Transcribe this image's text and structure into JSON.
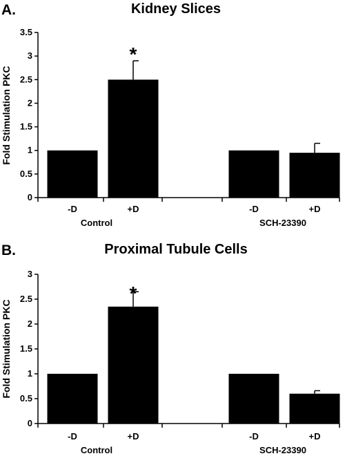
{
  "chart_data": [
    {
      "type": "bar",
      "panel_label": "A.",
      "title": "Kidney Slices",
      "ylabel": "Fold Stimulation PKC",
      "ylim": [
        0,
        3.5
      ],
      "yticks": [
        "0",
        "0.5",
        "1",
        "1.5",
        "2",
        "2.5",
        "3",
        "3.5"
      ],
      "categories": [
        "-D",
        "+D",
        "-D",
        "+D"
      ],
      "groups": [
        "Control",
        "SCH-23390"
      ],
      "values": [
        1.0,
        2.5,
        1.0,
        0.95
      ],
      "errors": [
        0,
        0.4,
        0,
        0.2
      ],
      "annotations": [
        "",
        "*",
        "",
        ""
      ]
    },
    {
      "type": "bar",
      "panel_label": "B.",
      "title": "Proximal Tubule Cells",
      "ylabel": "Fold Stimulation PKC",
      "ylim": [
        0,
        3
      ],
      "yticks": [
        "0",
        "0.5",
        "1",
        "1.5",
        "2",
        "2.5",
        "3"
      ],
      "categories": [
        "-D",
        "+D",
        "-D",
        "+D"
      ],
      "groups": [
        "Control",
        "SCH-23390"
      ],
      "values": [
        1.0,
        2.35,
        1.0,
        0.6
      ],
      "errors": [
        0,
        0.3,
        0,
        0.06
      ],
      "annotations": [
        "",
        "*",
        "",
        ""
      ]
    }
  ]
}
